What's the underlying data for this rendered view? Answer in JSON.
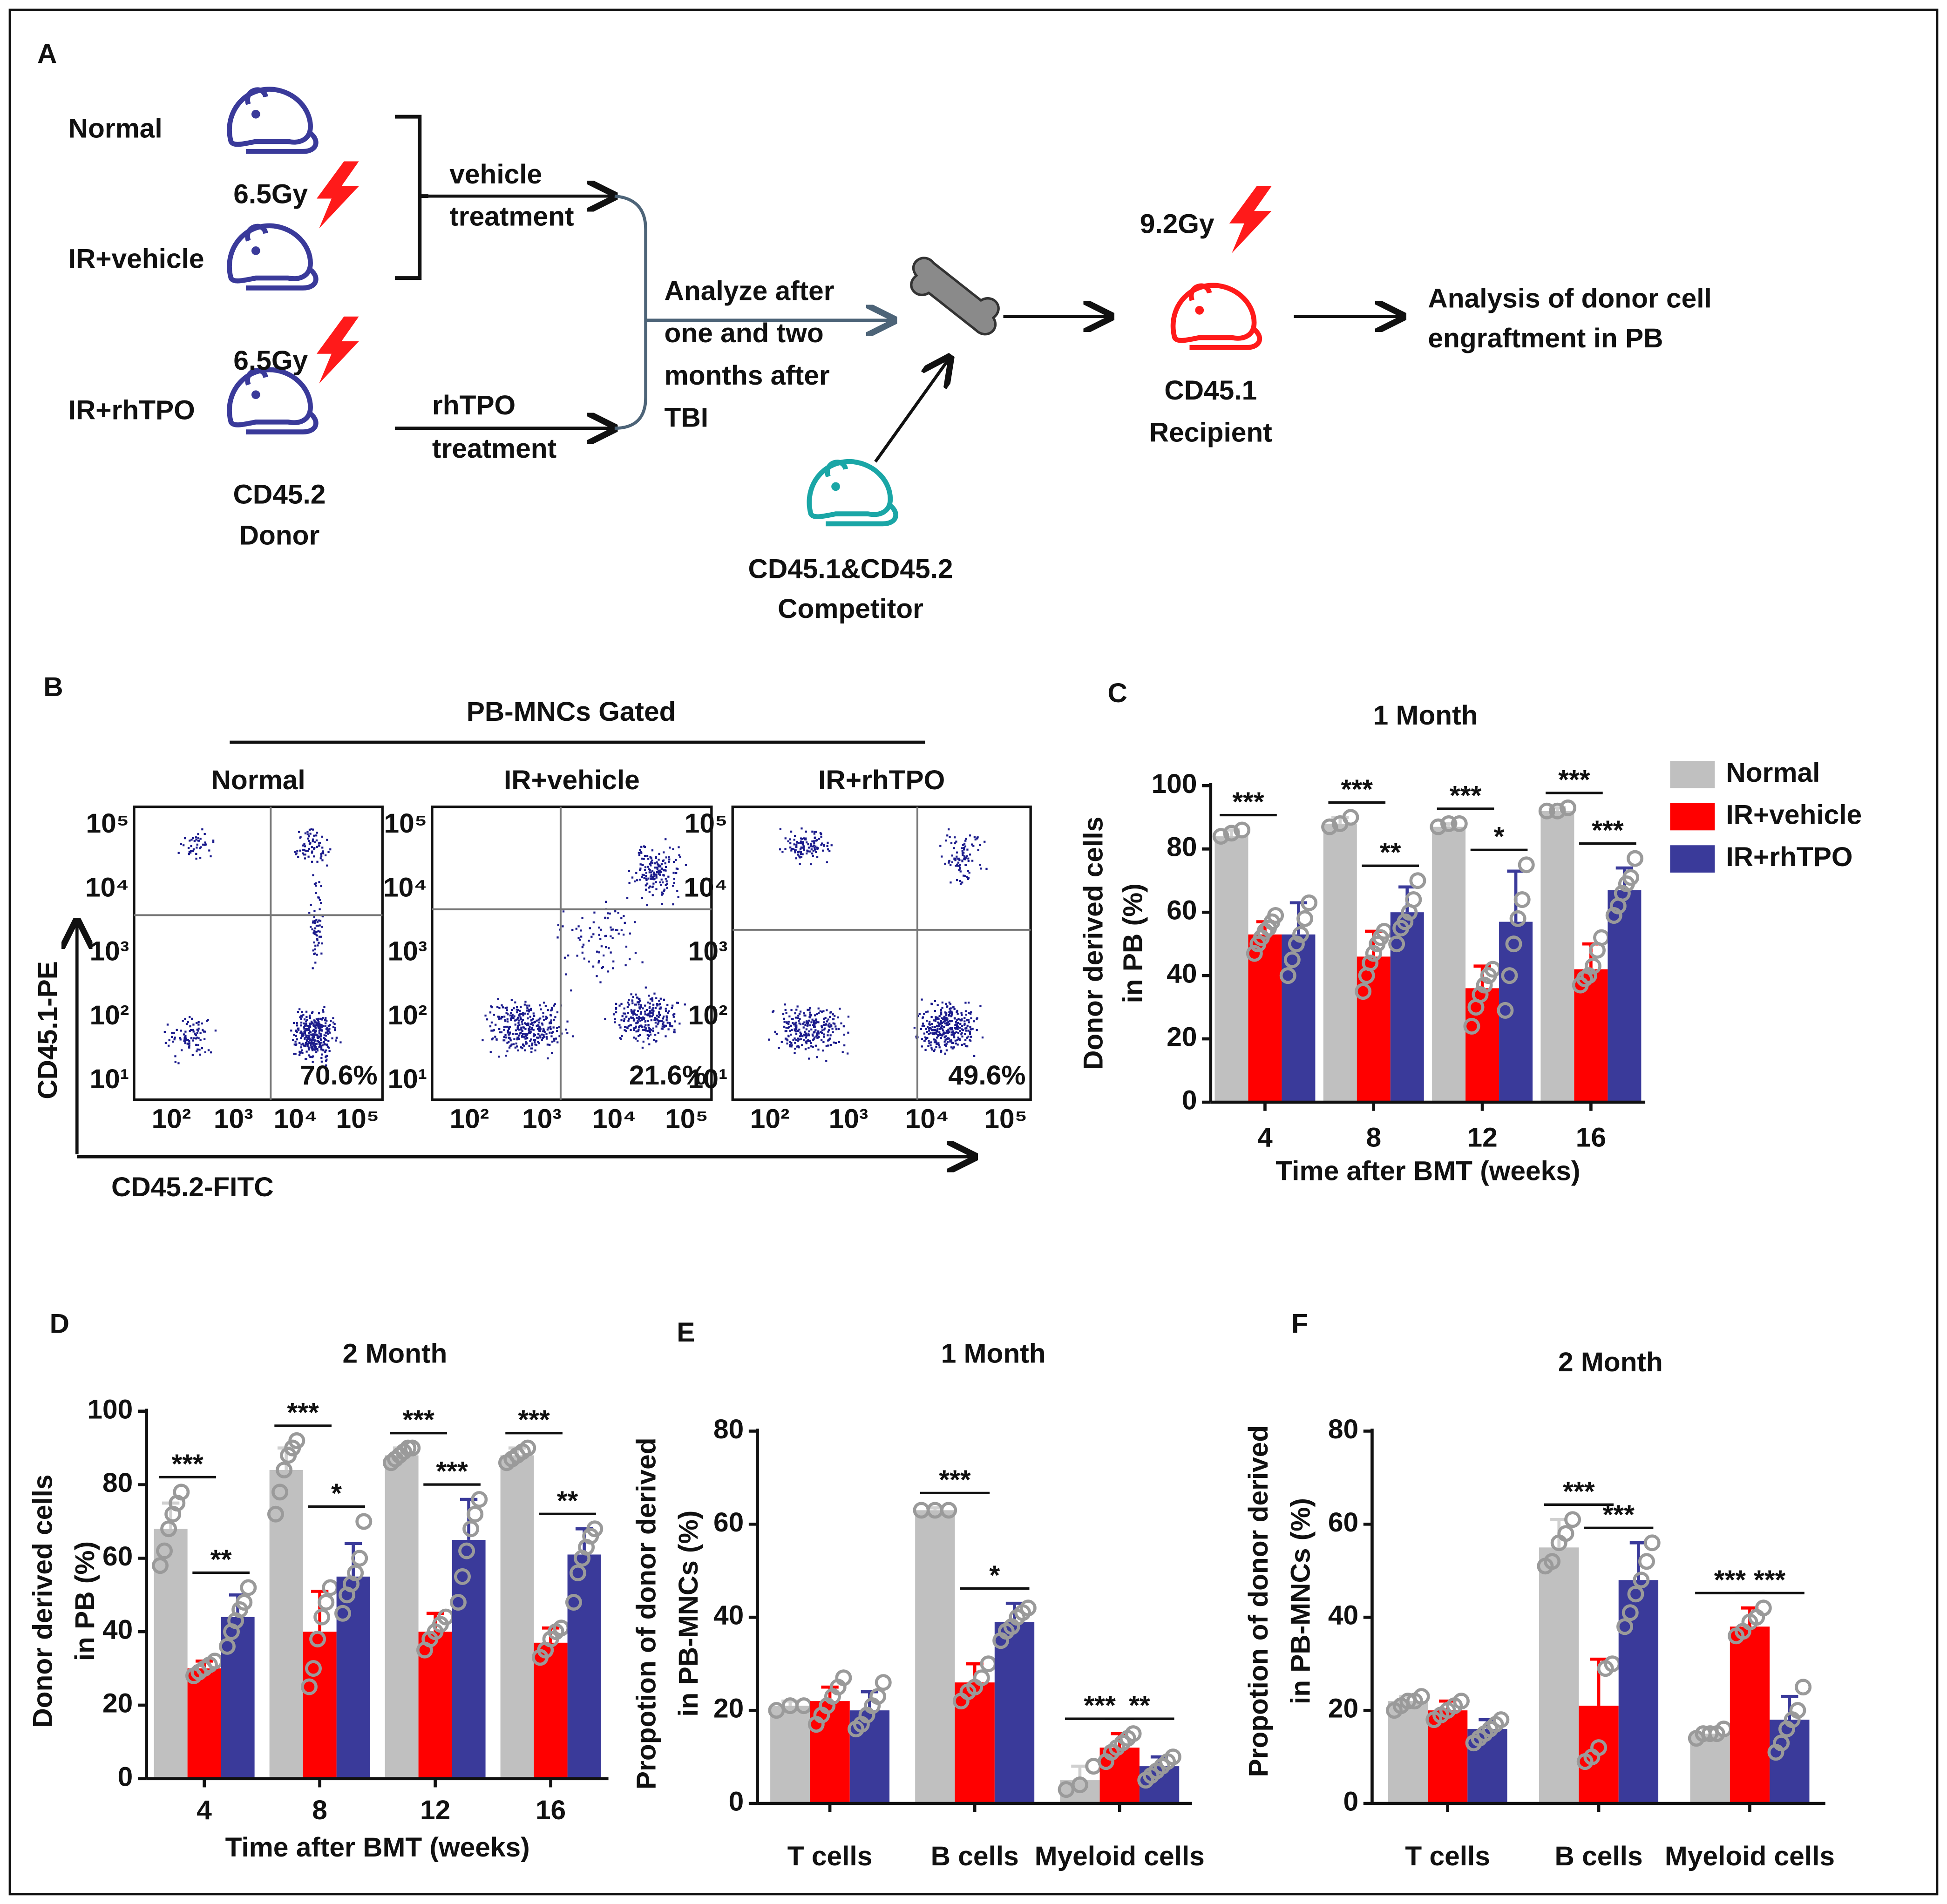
{
  "panel_a": {
    "label": "A",
    "groups": [
      "Normal",
      "IR+vehicle",
      "IR+rhTPO"
    ],
    "doses": [
      "6.5Gy",
      "6.5Gy"
    ],
    "donor": [
      "CD45.2",
      "Donor"
    ],
    "vehicle_treatment": [
      "vehicle",
      "treatment"
    ],
    "rhtpo_treatment": [
      "rhTPO",
      "treatment"
    ],
    "analyze": [
      "Analyze after",
      "one and two",
      "months after",
      "TBI"
    ],
    "competitor": [
      "CD45.1&CD45.2",
      "Competitor"
    ],
    "recipient_dose": "9.2Gy",
    "recipient": [
      "CD45.1",
      "Recipient"
    ],
    "analysis": [
      "Analysis of donor cell",
      "engraftment in PB"
    ]
  },
  "panel_b": {
    "label": "B",
    "header": "PB-MNCs Gated",
    "y_axis_label": "CD45.1-PE",
    "x_axis_label": "CD45.2-FITC",
    "plots": [
      {
        "title": "Normal",
        "percentage": "70.6%",
        "yticks": [
          "10⁵",
          "10⁴",
          "10³",
          "10²",
          "10¹"
        ],
        "xticks": [
          "10²",
          "10³",
          "10⁴",
          "10⁵"
        ]
      },
      {
        "title": "IR+vehicle",
        "percentage": "21.6%",
        "yticks": [
          "10⁵",
          "10⁴",
          "10³",
          "10²",
          "10¹"
        ],
        "xticks": [
          "10²",
          "10³",
          "10⁴",
          "10⁵"
        ]
      },
      {
        "title": "IR+rhTPO",
        "percentage": "49.6%",
        "yticks": [
          "10⁵",
          "10⁴",
          "10³",
          "10²",
          "10¹"
        ],
        "xticks": [
          "10²",
          "10³",
          "10⁴",
          "10⁵"
        ]
      }
    ]
  },
  "chart_data": [
    {
      "type": "bar",
      "panel": "C",
      "title": "1 Month",
      "x_label": "Time after BMT (weeks)",
      "y_label": [
        "Donor derived cells",
        "in PB (%)"
      ],
      "categories": [
        "4",
        "8",
        "12",
        "16"
      ],
      "ylim": [
        0,
        100
      ],
      "yticks": [
        0,
        20,
        40,
        60,
        80,
        100
      ],
      "legend": "right",
      "series": [
        {
          "name": "Normal",
          "color": "#c0c0c0",
          "values": [
            84,
            88,
            87,
            92
          ],
          "errors": [
            2,
            2,
            1,
            1
          ],
          "points": [
            [
              84,
              85,
              86
            ],
            [
              87,
              88,
              90
            ],
            [
              87,
              88,
              88
            ],
            [
              92,
              92,
              93
            ]
          ]
        },
        {
          "name": "IR+vehicle",
          "color": "#ff0000",
          "values": [
            53,
            46,
            36,
            42
          ],
          "errors": [
            4,
            8,
            7,
            8
          ],
          "points": [
            [
              47,
              50,
              52,
              54,
              55,
              57,
              59
            ],
            [
              35,
              40,
              44,
              47,
              50,
              52,
              54
            ],
            [
              24,
              30,
              34,
              37,
              40,
              42
            ],
            [
              37,
              39,
              40,
              43,
              48,
              52
            ]
          ]
        },
        {
          "name": "IR+rhTPO",
          "color": "#3a3a9a",
          "values": [
            53,
            60,
            57,
            67
          ],
          "errors": [
            10,
            8,
            16,
            7
          ],
          "points": [
            [
              40,
              45,
              50,
              53,
              58,
              63
            ],
            [
              50,
              55,
              57,
              60,
              64,
              70
            ],
            [
              29,
              40,
              50,
              58,
              64,
              75
            ],
            [
              59,
              62,
              66,
              69,
              71,
              77
            ]
          ]
        }
      ],
      "significance": [
        {
          "category": 0,
          "from": 0,
          "to": 1,
          "label": "***"
        },
        {
          "category": 1,
          "from": 0,
          "to": 1,
          "label": "***"
        },
        {
          "category": 1,
          "from": 1,
          "to": 2,
          "label": "**"
        },
        {
          "category": 2,
          "from": 0,
          "to": 1,
          "label": "***"
        },
        {
          "category": 2,
          "from": 1,
          "to": 2,
          "label": "*"
        },
        {
          "category": 3,
          "from": 0,
          "to": 1,
          "label": "***"
        },
        {
          "category": 3,
          "from": 1,
          "to": 2,
          "label": "***"
        }
      ]
    },
    {
      "type": "bar",
      "panel": "D",
      "title": "2 Month",
      "x_label": "Time after BMT (weeks)",
      "y_label": [
        "Donor derived cells",
        "in PB (%)"
      ],
      "categories": [
        "4",
        "8",
        "12",
        "16"
      ],
      "ylim": [
        0,
        100
      ],
      "yticks": [
        0,
        20,
        40,
        60,
        80,
        100
      ],
      "series": [
        {
          "color": "#c0c0c0",
          "values": [
            68,
            84,
            88,
            88
          ],
          "errors": [
            7,
            6,
            2,
            2
          ],
          "points": [
            [
              58,
              62,
              68,
              72,
              75,
              78
            ],
            [
              72,
              78,
              84,
              88,
              90,
              92
            ],
            [
              86,
              87,
              88,
              89,
              90,
              90
            ],
            [
              86,
              87,
              88,
              89,
              90
            ]
          ]
        },
        {
          "color": "#ff0000",
          "values": [
            30,
            40,
            40,
            37
          ],
          "errors": [
            2,
            11,
            5,
            4
          ],
          "points": [
            [
              28,
              29,
              30,
              31,
              32
            ],
            [
              25,
              30,
              38,
              44,
              48,
              52
            ],
            [
              35,
              38,
              40,
              42,
              44
            ],
            [
              33,
              35,
              38,
              40,
              41
            ]
          ]
        },
        {
          "color": "#3a3a9a",
          "values": [
            44,
            55,
            65,
            61
          ],
          "errors": [
            6,
            9,
            11,
            7
          ],
          "points": [
            [
              36,
              40,
              43,
              46,
              48,
              52
            ],
            [
              45,
              50,
              53,
              56,
              60,
              70
            ],
            [
              48,
              55,
              62,
              68,
              72,
              76
            ],
            [
              48,
              56,
              60,
              63,
              66,
              68
            ]
          ]
        }
      ],
      "significance": [
        {
          "category": 0,
          "from": 0,
          "to": 1,
          "label": "***"
        },
        {
          "category": 0,
          "from": 1,
          "to": 2,
          "label": "**"
        },
        {
          "category": 1,
          "from": 0,
          "to": 1,
          "label": "***"
        },
        {
          "category": 1,
          "from": 1,
          "to": 2,
          "label": "*"
        },
        {
          "category": 2,
          "from": 0,
          "to": 1,
          "label": "***"
        },
        {
          "category": 2,
          "from": 1,
          "to": 2,
          "label": "***"
        },
        {
          "category": 3,
          "from": 0,
          "to": 1,
          "label": "***"
        },
        {
          "category": 3,
          "from": 1,
          "to": 2,
          "label": "**"
        }
      ]
    },
    {
      "type": "bar",
      "panel": "E",
      "title": "1 Month",
      "y_label": [
        "Propotion of donor derived",
        "in PB-MNCs (%)"
      ],
      "categories": [
        "T cells",
        "B cells",
        "Myeloid cells"
      ],
      "ylim": [
        0,
        80
      ],
      "yticks": [
        0,
        20,
        40,
        60,
        80
      ],
      "series": [
        {
          "color": "#c0c0c0",
          "values": [
            21,
            63,
            5
          ],
          "errors": [
            1,
            0.5,
            3
          ],
          "points": [
            [
              20,
              21,
              21
            ],
            [
              63,
              63,
              63
            ],
            [
              3,
              4,
              8
            ]
          ]
        },
        {
          "color": "#ff0000",
          "values": [
            22,
            26,
            12
          ],
          "errors": [
            3,
            4,
            3
          ],
          "points": [
            [
              17,
              19,
              21,
              23,
              25,
              27
            ],
            [
              22,
              24,
              25,
              27,
              30
            ],
            [
              9,
              11,
              12,
              13,
              14,
              15
            ]
          ]
        },
        {
          "color": "#3a3a9a",
          "values": [
            20,
            39,
            8
          ],
          "errors": [
            4,
            4,
            2
          ],
          "points": [
            [
              16,
              17,
              19,
              21,
              23,
              26
            ],
            [
              35,
              37,
              38,
              40,
              41,
              42
            ],
            [
              5,
              6,
              7,
              8,
              9,
              10
            ]
          ]
        }
      ],
      "significance": [
        {
          "category": 1,
          "from": 0,
          "to": 1,
          "label": "***"
        },
        {
          "category": 1,
          "from": 1,
          "to": 2,
          "label": "*"
        },
        {
          "category": 2,
          "from": 0,
          "to": 1,
          "label": "***"
        },
        {
          "category": 2,
          "from": 1,
          "to": 2,
          "label": "**"
        }
      ]
    },
    {
      "type": "bar",
      "panel": "F",
      "title": "2 Month",
      "y_label": [
        "Propotion of donor derived",
        "in PB-MNCs (%)"
      ],
      "categories": [
        "T cells",
        "B cells",
        "Myeloid cells"
      ],
      "ylim": [
        0,
        80
      ],
      "yticks": [
        0,
        20,
        40,
        60,
        80
      ],
      "series": [
        {
          "color": "#c0c0c0",
          "values": [
            22,
            55,
            15
          ],
          "errors": [
            1,
            6,
            1
          ],
          "points": [
            [
              20,
              21,
              22,
              22,
              23
            ],
            [
              51,
              52,
              56,
              58,
              61
            ],
            [
              14,
              15,
              15,
              15,
              16
            ]
          ]
        },
        {
          "color": "#ff0000",
          "values": [
            20,
            21,
            38
          ],
          "errors": [
            2,
            10,
            4
          ],
          "points": [
            [
              18,
              19,
              20,
              21,
              22
            ],
            [
              9,
              10,
              12,
              29,
              30
            ],
            [
              36,
              37,
              39,
              40,
              42
            ]
          ]
        },
        {
          "color": "#3a3a9a",
          "values": [
            16,
            48,
            18
          ],
          "errors": [
            2,
            8,
            5
          ],
          "points": [
            [
              13,
              14,
              15,
              16,
              17,
              18
            ],
            [
              38,
              41,
              45,
              48,
              52,
              56
            ],
            [
              11,
              13,
              16,
              18,
              20,
              25
            ]
          ]
        }
      ],
      "significance": [
        {
          "category": 1,
          "from": 0,
          "to": 1,
          "label": "***"
        },
        {
          "category": 1,
          "from": 1,
          "to": 2,
          "label": "***"
        },
        {
          "category": 2,
          "from": 0,
          "to": 1,
          "label": "***"
        },
        {
          "category": 2,
          "from": 1,
          "to": 2,
          "label": "***"
        }
      ]
    }
  ]
}
